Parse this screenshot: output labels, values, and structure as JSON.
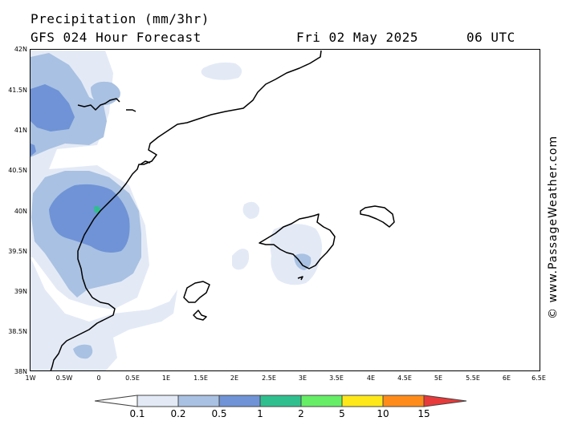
{
  "header": {
    "title": "Precipitation (mm/3hr)",
    "subtitle": "GFS 024 Hour Forecast",
    "date": "Fri 02 May 2025",
    "time": "06 UTC"
  },
  "map": {
    "lat_labels": [
      "42N",
      "41.5N",
      "41N",
      "40.5N",
      "40N",
      "39.5N",
      "39N",
      "38.5N",
      "38N"
    ],
    "lon_labels": [
      "1W",
      "0.5W",
      "0",
      "0.5E",
      "1E",
      "1.5E",
      "2E",
      "2.5E",
      "3E",
      "3.5E",
      "4E",
      "4.5E",
      "5E",
      "5.5E",
      "6E",
      "6.5E"
    ],
    "colors": {
      "land_outline": "#000000",
      "precip_0_1": "#e3eaf6",
      "precip_0_2": "#a9c1e2",
      "precip_0_5": "#6f93d6",
      "precip_1": "#2fbf8f"
    }
  },
  "credit": "© www.PassageWeather.com",
  "legend": {
    "labels": [
      "0.1",
      "0.2",
      "0.5",
      "1",
      "2",
      "5",
      "10",
      "15"
    ],
    "colors": [
      "#ffffff",
      "#e3eaf6",
      "#a9c1e2",
      "#6f93d6",
      "#2fbf8f",
      "#66ee66",
      "#ffe81a",
      "#ff8c1a",
      "#e83a3a"
    ]
  }
}
